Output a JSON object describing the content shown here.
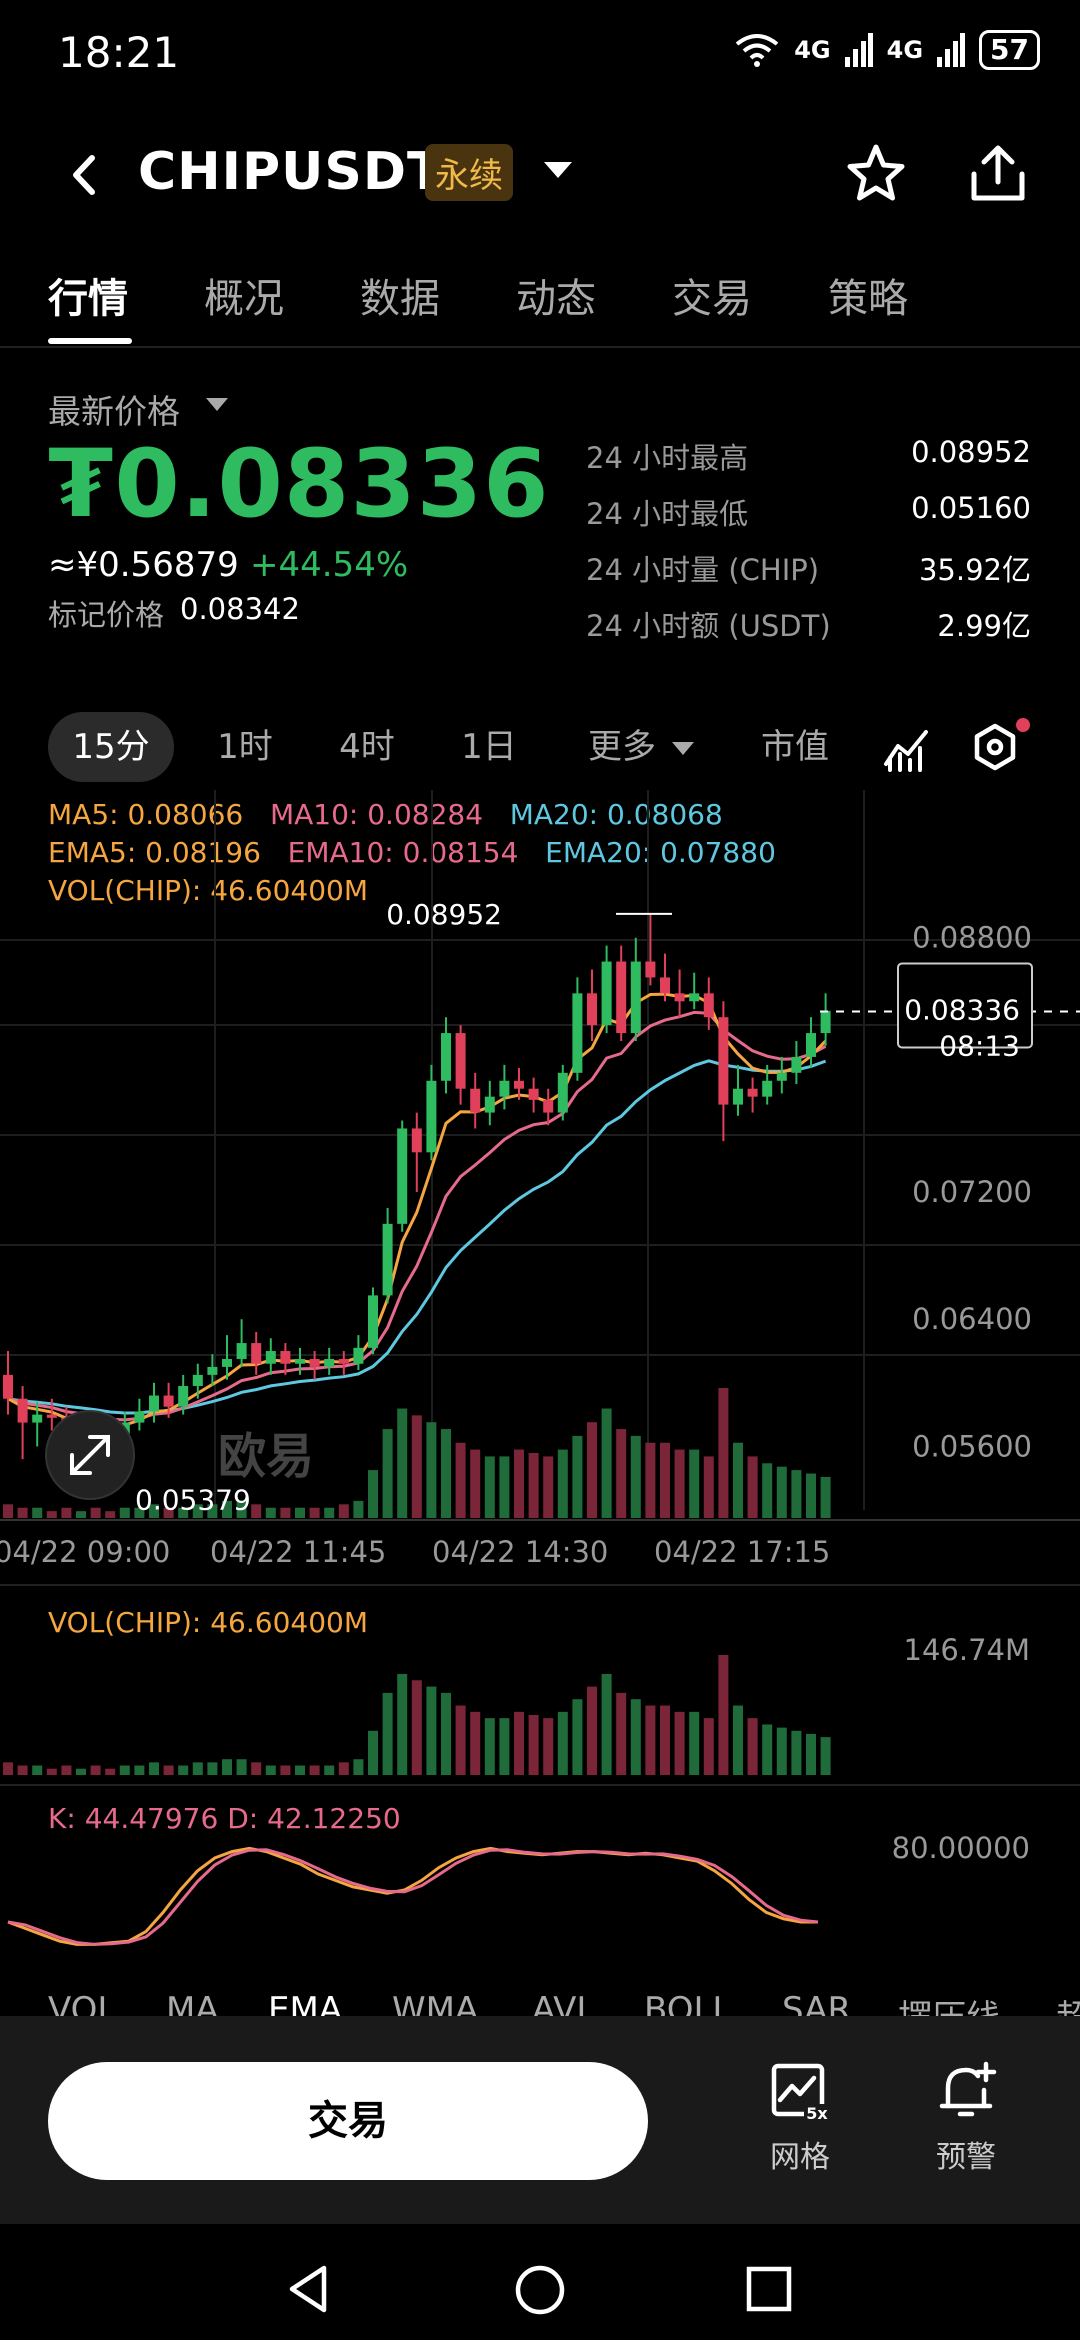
{
  "status": {
    "time": "18:21",
    "signal1": "4G",
    "signal2": "4G",
    "battery": "57"
  },
  "header": {
    "symbol": "CHIPUSDT",
    "tag": "永续"
  },
  "tabs": [
    "行情",
    "概况",
    "数据",
    "动态",
    "交易",
    "策略"
  ],
  "price": {
    "latest_label": "最新价格",
    "last": "₮0.08336",
    "cny": "≈¥0.56879",
    "change": "+44.54%",
    "mark_label": "标记价格",
    "mark_value": "0.08342"
  },
  "stats": [
    {
      "k": "24 小时最高",
      "v": "0.08952"
    },
    {
      "k": "24 小时最低",
      "v": "0.05160"
    },
    {
      "k": "24 小时量 (CHIP)",
      "v": "35.92亿"
    },
    {
      "k": "24 小时额 (USDT)",
      "v": "2.99亿"
    }
  ],
  "intervals": [
    "15分",
    "1时",
    "4时",
    "1日",
    "更多",
    "市值"
  ],
  "ma": {
    "ma5": "MA5: 0.08066",
    "ma10": "MA10: 0.08284",
    "ma20": "MA20: 0.08068",
    "ema5": "EMA5: 0.08196",
    "ema10": "EMA10: 0.08154",
    "ema20": "EMA20: 0.07880",
    "vol": "VOL(CHIP): 46.60400M"
  },
  "chart_data": {
    "type": "candlestick",
    "y_ticks": [
      "0.08800",
      "0.07200",
      "0.06400",
      "0.05600"
    ],
    "x_ticks": [
      "04/22 09:00",
      "04/22 11:45",
      "04/22 14:30",
      "04/22 17:15"
    ],
    "high_label": "0.08952",
    "low_label": "0.05379",
    "current_price": "0.08336",
    "countdown": "08:13",
    "watermark": "欧易",
    "candles": [
      [
        0.0605,
        0.059,
        0.062,
        0.058
      ],
      [
        0.059,
        0.0575,
        0.0598,
        0.0552
      ],
      [
        0.0575,
        0.058,
        0.0588,
        0.056
      ],
      [
        0.058,
        0.0578,
        0.059,
        0.057
      ],
      [
        0.0578,
        0.057,
        0.0585,
        0.0562
      ],
      [
        0.057,
        0.0575,
        0.0582,
        0.056
      ],
      [
        0.0575,
        0.0572,
        0.058,
        0.0555
      ],
      [
        0.0572,
        0.0568,
        0.0578,
        0.0538
      ],
      [
        0.0568,
        0.0575,
        0.0582,
        0.056
      ],
      [
        0.0575,
        0.0582,
        0.059,
        0.057
      ],
      [
        0.0582,
        0.0592,
        0.06,
        0.0575
      ],
      [
        0.0592,
        0.0585,
        0.06,
        0.0578
      ],
      [
        0.0585,
        0.0598,
        0.0605,
        0.058
      ],
      [
        0.0598,
        0.0605,
        0.0612,
        0.059
      ],
      [
        0.0605,
        0.061,
        0.0618,
        0.0598
      ],
      [
        0.061,
        0.0615,
        0.063,
        0.0602
      ],
      [
        0.0615,
        0.0625,
        0.064,
        0.061
      ],
      [
        0.0625,
        0.0612,
        0.0632,
        0.0605
      ],
      [
        0.0612,
        0.062,
        0.0628,
        0.0605
      ],
      [
        0.062,
        0.0612,
        0.0625,
        0.0605
      ],
      [
        0.0612,
        0.0615,
        0.0622,
        0.0605
      ],
      [
        0.0615,
        0.061,
        0.062,
        0.0602
      ],
      [
        0.061,
        0.0615,
        0.0622,
        0.0605
      ],
      [
        0.0615,
        0.0612,
        0.062,
        0.0605
      ],
      [
        0.0612,
        0.0622,
        0.063,
        0.0608
      ],
      [
        0.0622,
        0.0655,
        0.066,
        0.0618
      ],
      [
        0.0655,
        0.07,
        0.071,
        0.065
      ],
      [
        0.07,
        0.076,
        0.0765,
        0.0695
      ],
      [
        0.076,
        0.0745,
        0.077,
        0.072
      ],
      [
        0.0745,
        0.079,
        0.08,
        0.074
      ],
      [
        0.079,
        0.082,
        0.083,
        0.0782
      ],
      [
        0.082,
        0.0785,
        0.0825,
        0.0775
      ],
      [
        0.0785,
        0.077,
        0.0795,
        0.076
      ],
      [
        0.077,
        0.078,
        0.079,
        0.0762
      ],
      [
        0.078,
        0.079,
        0.08,
        0.0772
      ],
      [
        0.079,
        0.0785,
        0.0798,
        0.0778
      ],
      [
        0.0785,
        0.0778,
        0.0792,
        0.077
      ],
      [
        0.0778,
        0.077,
        0.0785,
        0.0762
      ],
      [
        0.077,
        0.0795,
        0.08,
        0.0765
      ],
      [
        0.0795,
        0.0845,
        0.0855,
        0.079
      ],
      [
        0.0845,
        0.0825,
        0.086,
        0.0815
      ],
      [
        0.0825,
        0.0865,
        0.0875,
        0.082
      ],
      [
        0.0865,
        0.082,
        0.0875,
        0.0815
      ],
      [
        0.082,
        0.0865,
        0.088,
        0.0815
      ],
      [
        0.0865,
        0.0855,
        0.0895,
        0.085
      ],
      [
        0.0855,
        0.0845,
        0.087,
        0.084
      ],
      [
        0.0845,
        0.084,
        0.086,
        0.083
      ],
      [
        0.084,
        0.0845,
        0.0858,
        0.0835
      ],
      [
        0.0845,
        0.083,
        0.0855,
        0.0822
      ],
      [
        0.083,
        0.0775,
        0.084,
        0.0752
      ],
      [
        0.0775,
        0.0785,
        0.08,
        0.0768
      ],
      [
        0.0785,
        0.078,
        0.0792,
        0.077
      ],
      [
        0.078,
        0.079,
        0.08,
        0.0775
      ],
      [
        0.079,
        0.0795,
        0.0805,
        0.0782
      ],
      [
        0.0795,
        0.0805,
        0.0815,
        0.0788
      ],
      [
        0.0805,
        0.082,
        0.083,
        0.0798
      ],
      [
        0.082,
        0.0834,
        0.0845,
        0.0812
      ]
    ],
    "volumes": [
      4,
      3,
      3,
      2,
      3,
      2,
      3,
      2,
      3,
      3,
      4,
      3,
      3,
      4,
      4,
      5,
      5,
      4,
      3,
      3,
      3,
      3,
      3,
      4,
      5,
      14,
      26,
      32,
      30,
      28,
      26,
      22,
      20,
      18,
      18,
      20,
      19,
      18,
      20,
      24,
      28,
      32,
      26,
      24,
      22,
      22,
      20,
      20,
      18,
      38,
      22,
      18,
      16,
      15,
      14,
      13,
      12
    ],
    "volume_axis_label": "146.74M",
    "vol_label": "VOL(CHIP): 46.60400M",
    "kd_label": "K: 44.47976  D: 42.12250",
    "kd_axis_label": "80.00000",
    "indicator_tabs": [
      "VOL",
      "MA",
      "EMA",
      "WMA",
      "AVL",
      "BOLL",
      "SAR",
      "摆压线",
      "超"
    ]
  },
  "actions": {
    "trade": "交易",
    "grid": "网格",
    "alert": "预警"
  },
  "colors": {
    "up": "#2fbb5f",
    "down": "#e0405a",
    "ma5": "#f5a640",
    "ma10": "#e66a8c",
    "ma20": "#5ec8e0"
  }
}
